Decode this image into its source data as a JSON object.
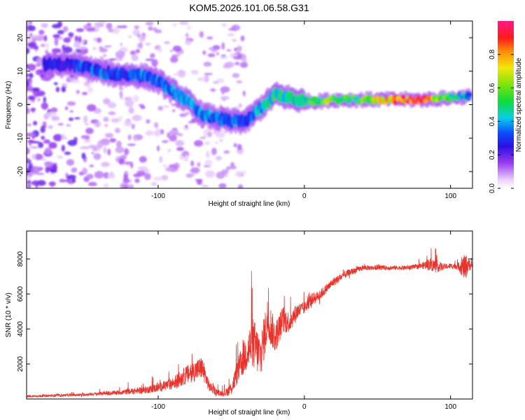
{
  "figure": {
    "title": "KOM5.2026.101.06.58.G31"
  },
  "chart_data": [
    {
      "type": "heatmap",
      "xlabel": "Height of straight line (km)",
      "ylabel": "Frequency (Hz)",
      "xlim": [
        -190,
        115
      ],
      "ylim": [
        -25,
        25
      ],
      "x_ticks": [
        -100,
        0,
        100
      ],
      "y_ticks": [
        -20,
        -10,
        0,
        10,
        20
      ],
      "colorbar": {
        "label": "Normalized spectral amplitude",
        "range": [
          0,
          1
        ],
        "ticks": [
          "0.0",
          "0.2",
          "0.4",
          "0.6",
          "0.8"
        ]
      },
      "ridge": {
        "description_points_x": [
          -170,
          -160,
          -150,
          -140,
          -130,
          -120,
          -110,
          -100,
          -90,
          -80,
          -70,
          -60,
          -50,
          -40,
          -30,
          -20,
          -10,
          0,
          10,
          20,
          40,
          60,
          80,
          100,
          112
        ],
        "frequency": [
          12,
          12,
          11,
          10,
          9,
          9,
          8.5,
          7,
          4,
          1,
          -3,
          -4,
          -5,
          -5,
          -1,
          3,
          2,
          1,
          1,
          1.5,
          1.5,
          1.5,
          1.5,
          2,
          2.5
        ],
        "amplitude": [
          0.25,
          0.25,
          0.35,
          0.35,
          0.3,
          0.3,
          0.35,
          0.35,
          0.4,
          0.4,
          0.35,
          0.35,
          0.35,
          0.3,
          0.4,
          0.5,
          0.45,
          0.45,
          0.6,
          0.55,
          0.55,
          0.8,
          0.9,
          0.5,
          0.4
        ]
      }
    },
    {
      "type": "line",
      "xlabel": "Height of straight line (km)",
      "ylabel": "SNR (10 * v/v)",
      "xlim": [
        -190,
        115
      ],
      "ylim": [
        0,
        9600
      ],
      "x_ticks": [
        -100,
        0,
        100
      ],
      "y_ticks": [
        2000,
        4000,
        6000,
        8000
      ],
      "line_color": "#e8342d",
      "series": [
        {
          "x": [
            -190,
            -170,
            -150,
            -130,
            -110,
            -100,
            -90,
            -80,
            -70,
            -65,
            -60,
            -55,
            -50,
            -45,
            -40,
            -35,
            -30,
            -25,
            -20,
            -15,
            -10,
            -5,
            0,
            5,
            10,
            20,
            30,
            40,
            50,
            60,
            70,
            80,
            85,
            90,
            95,
            100,
            105,
            110,
            112,
            115
          ],
          "y": [
            150,
            200,
            250,
            350,
            500,
            650,
            900,
            1400,
            1800,
            700,
            400,
            300,
            600,
            1700,
            2600,
            3200,
            2400,
            4600,
            3500,
            4500,
            4400,
            5000,
            5200,
            5700,
            5900,
            6700,
            7200,
            7500,
            7500,
            7500,
            7500,
            7600,
            7700,
            7600,
            7550,
            7600,
            7600,
            7500,
            7700,
            7600
          ],
          "spread": [
            100,
            150,
            150,
            250,
            400,
            500,
            700,
            1100,
            1300,
            600,
            400,
            300,
            800,
            1500,
            2200,
            3000,
            2500,
            2600,
            1800,
            1600,
            1200,
            1000,
            700,
            700,
            600,
            500,
            400,
            300,
            250,
            250,
            250,
            300,
            700,
            800,
            350,
            300,
            400,
            1600,
            900,
            300
          ]
        }
      ]
    }
  ]
}
